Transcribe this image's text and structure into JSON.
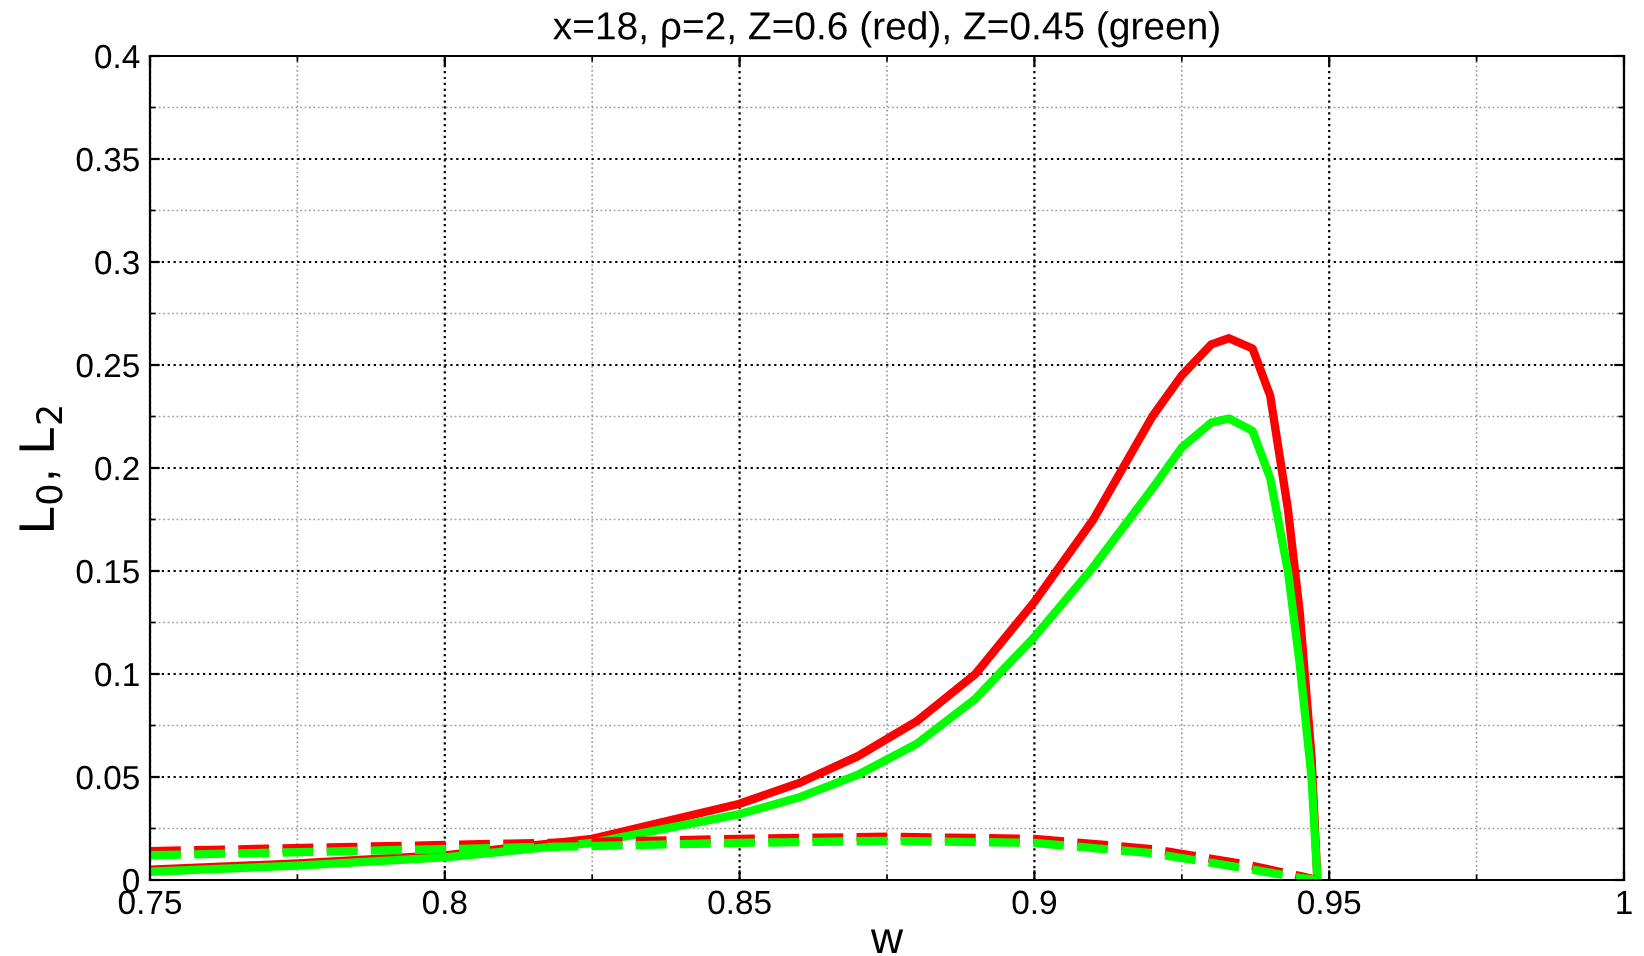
{
  "chart_data": {
    "type": "line",
    "title": "x=18, ρ=2, Z=0.6 (red), Z=0.45 (green)",
    "xlabel": "w",
    "ylabel": "L$_{0}$, L$_{2}$",
    "x": [
      0.75,
      0.775,
      0.8,
      0.825,
      0.85,
      0.86,
      0.87,
      0.88,
      0.89,
      0.9,
      0.91,
      0.92,
      0.925,
      0.93,
      0.933,
      0.937,
      0.94,
      0.943,
      0.945,
      0.947,
      0.948
    ],
    "series": [
      {
        "color": "#ff0000",
        "line_style": "solid",
        "values": [
          0.005,
          0.008,
          0.012,
          0.02,
          0.037,
          0.047,
          0.06,
          0.077,
          0.1,
          0.135,
          0.175,
          0.225,
          0.245,
          0.26,
          0.263,
          0.258,
          0.235,
          0.18,
          0.13,
          0.06,
          0
        ]
      },
      {
        "color": "#00ff00",
        "line_style": "solid",
        "values": [
          0.004,
          0.007,
          0.011,
          0.018,
          0.032,
          0.04,
          0.051,
          0.066,
          0.088,
          0.118,
          0.152,
          0.19,
          0.21,
          0.222,
          0.224,
          0.218,
          0.195,
          0.15,
          0.105,
          0.05,
          0
        ]
      },
      {
        "color": "#ff0000",
        "line_style": "dashed",
        "x": [
          0.75,
          0.8,
          0.85,
          0.875,
          0.9,
          0.92,
          0.935,
          0.945,
          0.948
        ],
        "values": [
          0.014,
          0.017,
          0.02,
          0.021,
          0.02,
          0.015,
          0.008,
          0.002,
          0
        ]
      },
      {
        "color": "#00ff00",
        "line_style": "dashed",
        "x": [
          0.75,
          0.8,
          0.85,
          0.875,
          0.9,
          0.92,
          0.935,
          0.945,
          0.948
        ],
        "values": [
          0.012,
          0.015,
          0.018,
          0.019,
          0.018,
          0.013,
          0.006,
          0.001,
          0
        ]
      }
    ],
    "xlim": [
      0.75,
      1
    ],
    "xticks": [
      0.75,
      0.8,
      0.85,
      0.9,
      0.95,
      1
    ],
    "ylim": [
      0,
      0.4
    ],
    "yticks": [
      0,
      0.05,
      0.1,
      0.15,
      0.2,
      0.25,
      0.3,
      0.35,
      0.4
    ],
    "grid": true
  }
}
